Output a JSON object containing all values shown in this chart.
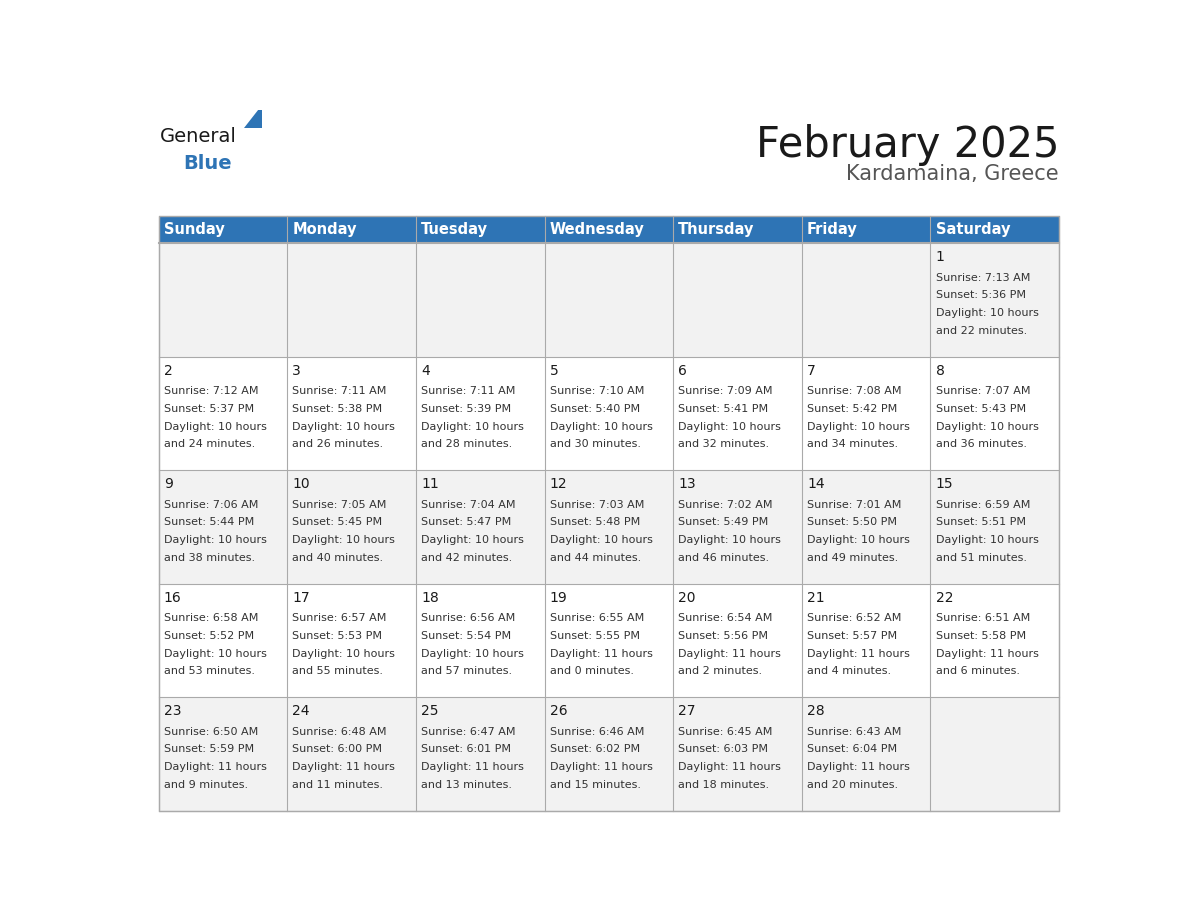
{
  "title": "February 2025",
  "subtitle": "Kardamaina, Greece",
  "header_bg_color": "#2E74B5",
  "header_text_color": "#FFFFFF",
  "cell_text_color": "#333333",
  "day_number_color": "#2E74B5",
  "days_of_week": [
    "Sunday",
    "Monday",
    "Tuesday",
    "Wednesday",
    "Thursday",
    "Friday",
    "Saturday"
  ],
  "row_bg_colors": [
    "#F2F2F2",
    "#FFFFFF",
    "#F2F2F2",
    "#FFFFFF",
    "#F2F2F2"
  ],
  "calendar_data": {
    "1": {
      "sunrise": "7:13 AM",
      "sunset": "5:36 PM",
      "daylight_h": "10 hours",
      "daylight_m": "and 22 minutes.",
      "col": 6,
      "row": 0
    },
    "2": {
      "sunrise": "7:12 AM",
      "sunset": "5:37 PM",
      "daylight_h": "10 hours",
      "daylight_m": "and 24 minutes.",
      "col": 0,
      "row": 1
    },
    "3": {
      "sunrise": "7:11 AM",
      "sunset": "5:38 PM",
      "daylight_h": "10 hours",
      "daylight_m": "and 26 minutes.",
      "col": 1,
      "row": 1
    },
    "4": {
      "sunrise": "7:11 AM",
      "sunset": "5:39 PM",
      "daylight_h": "10 hours",
      "daylight_m": "and 28 minutes.",
      "col": 2,
      "row": 1
    },
    "5": {
      "sunrise": "7:10 AM",
      "sunset": "5:40 PM",
      "daylight_h": "10 hours",
      "daylight_m": "and 30 minutes.",
      "col": 3,
      "row": 1
    },
    "6": {
      "sunrise": "7:09 AM",
      "sunset": "5:41 PM",
      "daylight_h": "10 hours",
      "daylight_m": "and 32 minutes.",
      "col": 4,
      "row": 1
    },
    "7": {
      "sunrise": "7:08 AM",
      "sunset": "5:42 PM",
      "daylight_h": "10 hours",
      "daylight_m": "and 34 minutes.",
      "col": 5,
      "row": 1
    },
    "8": {
      "sunrise": "7:07 AM",
      "sunset": "5:43 PM",
      "daylight_h": "10 hours",
      "daylight_m": "and 36 minutes.",
      "col": 6,
      "row": 1
    },
    "9": {
      "sunrise": "7:06 AM",
      "sunset": "5:44 PM",
      "daylight_h": "10 hours",
      "daylight_m": "and 38 minutes.",
      "col": 0,
      "row": 2
    },
    "10": {
      "sunrise": "7:05 AM",
      "sunset": "5:45 PM",
      "daylight_h": "10 hours",
      "daylight_m": "and 40 minutes.",
      "col": 1,
      "row": 2
    },
    "11": {
      "sunrise": "7:04 AM",
      "sunset": "5:47 PM",
      "daylight_h": "10 hours",
      "daylight_m": "and 42 minutes.",
      "col": 2,
      "row": 2
    },
    "12": {
      "sunrise": "7:03 AM",
      "sunset": "5:48 PM",
      "daylight_h": "10 hours",
      "daylight_m": "and 44 minutes.",
      "col": 3,
      "row": 2
    },
    "13": {
      "sunrise": "7:02 AM",
      "sunset": "5:49 PM",
      "daylight_h": "10 hours",
      "daylight_m": "and 46 minutes.",
      "col": 4,
      "row": 2
    },
    "14": {
      "sunrise": "7:01 AM",
      "sunset": "5:50 PM",
      "daylight_h": "10 hours",
      "daylight_m": "and 49 minutes.",
      "col": 5,
      "row": 2
    },
    "15": {
      "sunrise": "6:59 AM",
      "sunset": "5:51 PM",
      "daylight_h": "10 hours",
      "daylight_m": "and 51 minutes.",
      "col": 6,
      "row": 2
    },
    "16": {
      "sunrise": "6:58 AM",
      "sunset": "5:52 PM",
      "daylight_h": "10 hours",
      "daylight_m": "and 53 minutes.",
      "col": 0,
      "row": 3
    },
    "17": {
      "sunrise": "6:57 AM",
      "sunset": "5:53 PM",
      "daylight_h": "10 hours",
      "daylight_m": "and 55 minutes.",
      "col": 1,
      "row": 3
    },
    "18": {
      "sunrise": "6:56 AM",
      "sunset": "5:54 PM",
      "daylight_h": "10 hours",
      "daylight_m": "and 57 minutes.",
      "col": 2,
      "row": 3
    },
    "19": {
      "sunrise": "6:55 AM",
      "sunset": "5:55 PM",
      "daylight_h": "11 hours",
      "daylight_m": "and 0 minutes.",
      "col": 3,
      "row": 3
    },
    "20": {
      "sunrise": "6:54 AM",
      "sunset": "5:56 PM",
      "daylight_h": "11 hours",
      "daylight_m": "and 2 minutes.",
      "col": 4,
      "row": 3
    },
    "21": {
      "sunrise": "6:52 AM",
      "sunset": "5:57 PM",
      "daylight_h": "11 hours",
      "daylight_m": "and 4 minutes.",
      "col": 5,
      "row": 3
    },
    "22": {
      "sunrise": "6:51 AM",
      "sunset": "5:58 PM",
      "daylight_h": "11 hours",
      "daylight_m": "and 6 minutes.",
      "col": 6,
      "row": 3
    },
    "23": {
      "sunrise": "6:50 AM",
      "sunset": "5:59 PM",
      "daylight_h": "11 hours",
      "daylight_m": "and 9 minutes.",
      "col": 0,
      "row": 4
    },
    "24": {
      "sunrise": "6:48 AM",
      "sunset": "6:00 PM",
      "daylight_h": "11 hours",
      "daylight_m": "and 11 minutes.",
      "col": 1,
      "row": 4
    },
    "25": {
      "sunrise": "6:47 AM",
      "sunset": "6:01 PM",
      "daylight_h": "11 hours",
      "daylight_m": "and 13 minutes.",
      "col": 2,
      "row": 4
    },
    "26": {
      "sunrise": "6:46 AM",
      "sunset": "6:02 PM",
      "daylight_h": "11 hours",
      "daylight_m": "and 15 minutes.",
      "col": 3,
      "row": 4
    },
    "27": {
      "sunrise": "6:45 AM",
      "sunset": "6:03 PM",
      "daylight_h": "11 hours",
      "daylight_m": "and 18 minutes.",
      "col": 4,
      "row": 4
    },
    "28": {
      "sunrise": "6:43 AM",
      "sunset": "6:04 PM",
      "daylight_h": "11 hours",
      "daylight_m": "and 20 minutes.",
      "col": 5,
      "row": 4
    }
  }
}
